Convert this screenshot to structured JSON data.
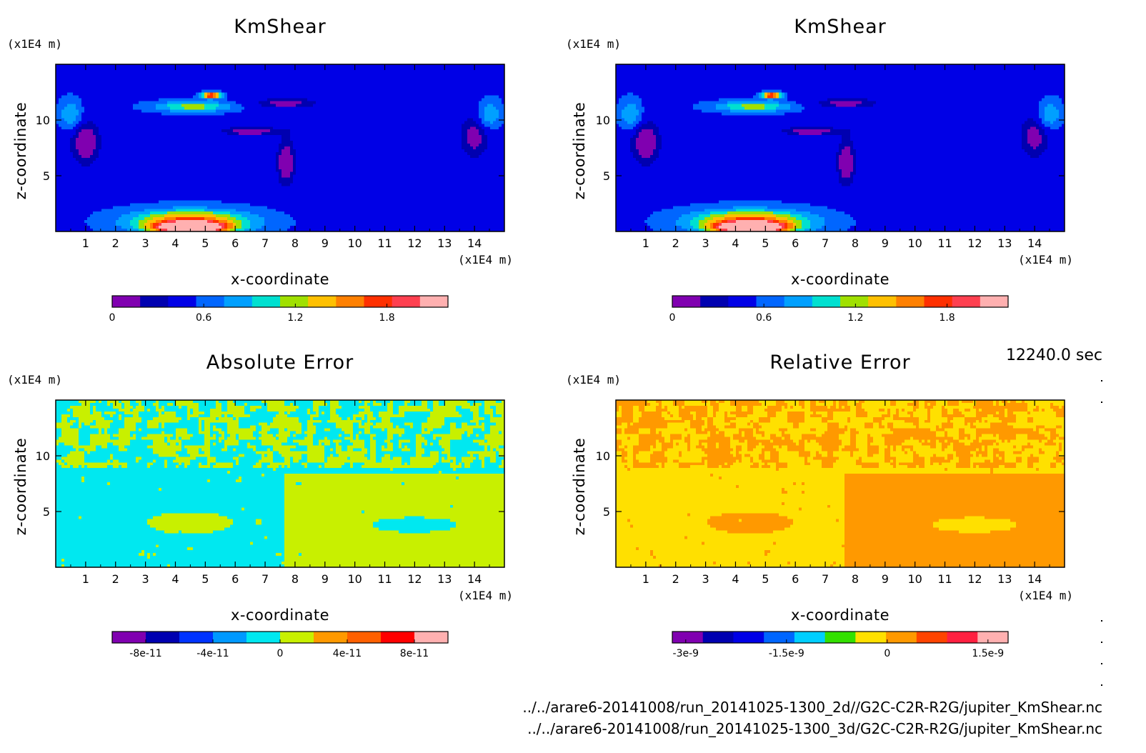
{
  "chart_data": [
    {
      "type": "heatmap",
      "title": "KmShear",
      "xlabel": "x-coordinate",
      "ylabel": "z-coordinate",
      "x_unit": "(x1E4 m)",
      "y_unit": "(x1E4 m)",
      "xlim": [
        0,
        15
      ],
      "ylim": [
        0,
        15
      ],
      "x_ticks": [
        "1",
        "2",
        "3",
        "4",
        "5",
        "6",
        "7",
        "8",
        "9",
        "10",
        "11",
        "12",
        "13",
        "14"
      ],
      "y_ticks": [
        "5",
        "10"
      ],
      "field": "kmshear",
      "levels": [
        "#8000b0",
        "#0000b0",
        "#0000e6",
        "#0066ff",
        "#00a0ff",
        "#00e0d0",
        "#a0e000",
        "#ffc000",
        "#ff8000",
        "#ff3000",
        "#ff4050",
        "#ffb0b0"
      ],
      "colorbar_labels": [
        "0",
        "0.6",
        "1.2",
        "1.8"
      ],
      "colorbar_range": [
        0,
        2.2
      ]
    },
    {
      "type": "heatmap",
      "title": "KmShear",
      "xlabel": "x-coordinate",
      "ylabel": "z-coordinate",
      "x_unit": "(x1E4 m)",
      "y_unit": "(x1E4 m)",
      "xlim": [
        0,
        15
      ],
      "ylim": [
        0,
        15
      ],
      "x_ticks": [
        "1",
        "2",
        "3",
        "4",
        "5",
        "6",
        "7",
        "8",
        "9",
        "10",
        "11",
        "12",
        "13",
        "14"
      ],
      "y_ticks": [
        "5",
        "10"
      ],
      "field": "kmshear",
      "levels": [
        "#8000b0",
        "#0000b0",
        "#0000e6",
        "#0066ff",
        "#00a0ff",
        "#00e0d0",
        "#a0e000",
        "#ffc000",
        "#ff8000",
        "#ff3000",
        "#ff4050",
        "#ffb0b0"
      ],
      "colorbar_labels": [
        "0",
        "0.6",
        "1.2",
        "1.8"
      ],
      "colorbar_range": [
        0,
        2.2
      ]
    },
    {
      "type": "heatmap",
      "title": "Absolute Error",
      "xlabel": "x-coordinate",
      "ylabel": "z-coordinate",
      "x_unit": "(x1E4 m)",
      "y_unit": "(x1E4 m)",
      "xlim": [
        0,
        15
      ],
      "ylim": [
        0,
        15
      ],
      "x_ticks": [
        "1",
        "2",
        "3",
        "4",
        "5",
        "6",
        "7",
        "8",
        "9",
        "10",
        "11",
        "12",
        "13",
        "14"
      ],
      "y_ticks": [
        "5",
        "10"
      ],
      "field": "abserr",
      "levels": [
        "#8000b0",
        "#0000b0",
        "#0033ff",
        "#0099ff",
        "#00e8f0",
        "#c8f000",
        "#ff9900",
        "#ff6000",
        "#ff0000",
        "#ffb0b0"
      ],
      "colorbar_labels": [
        "-8e-11",
        "-4e-11",
        "0",
        "4e-11",
        "8e-11"
      ],
      "colorbar_range": [
        -1e-10,
        1e-10
      ]
    },
    {
      "type": "heatmap",
      "title": "Relative Error",
      "xlabel": "x-coordinate",
      "ylabel": "z-coordinate",
      "x_unit": "(x1E4 m)",
      "y_unit": "(x1E4 m)",
      "xlim": [
        0,
        15
      ],
      "ylim": [
        0,
        15
      ],
      "x_ticks": [
        "1",
        "2",
        "3",
        "4",
        "5",
        "6",
        "7",
        "8",
        "9",
        "10",
        "11",
        "12",
        "13",
        "14"
      ],
      "y_ticks": [
        "5",
        "10"
      ],
      "field": "relerr",
      "levels": [
        "#8000b0",
        "#0000b0",
        "#0000e6",
        "#0066ff",
        "#00cfff",
        "#33e000",
        "#ffe000",
        "#ff9900",
        "#ff4400",
        "#ff2040",
        "#ffb0b0"
      ],
      "colorbar_labels": [
        "-3e-9",
        "-1.5e-9",
        "0",
        "1.5e-9"
      ],
      "colorbar_range": [
        -3.2e-09,
        1.8e-09
      ]
    }
  ],
  "time_label": "12240.0 sec",
  "footer_lines": [
    "../../arare6-20141008/run_20141025-1300_2d//G2C-C2R-R2G/jupiter_KmShear.nc",
    "../../arare6-20141008/run_20141025-1300_3d/G2C-C2R-R2G/jupiter_KmShear.nc"
  ]
}
